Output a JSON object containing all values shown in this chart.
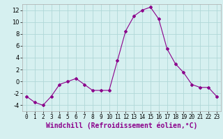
{
  "x": [
    0,
    1,
    2,
    3,
    4,
    5,
    6,
    7,
    8,
    9,
    10,
    11,
    12,
    13,
    14,
    15,
    16,
    17,
    18,
    19,
    20,
    21,
    22,
    23
  ],
  "y": [
    -2.5,
    -3.5,
    -4.0,
    -2.5,
    -0.5,
    0.0,
    0.5,
    -0.5,
    -1.5,
    -1.5,
    -1.5,
    3.5,
    8.5,
    11.0,
    12.0,
    12.5,
    10.5,
    5.5,
    3.0,
    1.5,
    -0.5,
    -1.0,
    -1.0,
    -2.5
  ],
  "line_color": "#8B008B",
  "marker": "D",
  "marker_size": 2,
  "bg_color": "#d6f0f0",
  "grid_color": "#b0d8d8",
  "xlabel": "Windchill (Refroidissement éolien,°C)",
  "xlabel_color": "#8B008B",
  "xlabel_fontsize": 7,
  "tick_fontsize": 6,
  "ylim": [
    -5,
    13
  ],
  "xlim": [
    -0.5,
    23.5
  ],
  "yticks": [
    -4,
    -2,
    0,
    2,
    4,
    6,
    8,
    10,
    12
  ],
  "xticks": [
    0,
    1,
    2,
    3,
    4,
    5,
    6,
    7,
    8,
    9,
    10,
    11,
    12,
    13,
    14,
    15,
    16,
    17,
    18,
    19,
    20,
    21,
    22,
    23
  ]
}
